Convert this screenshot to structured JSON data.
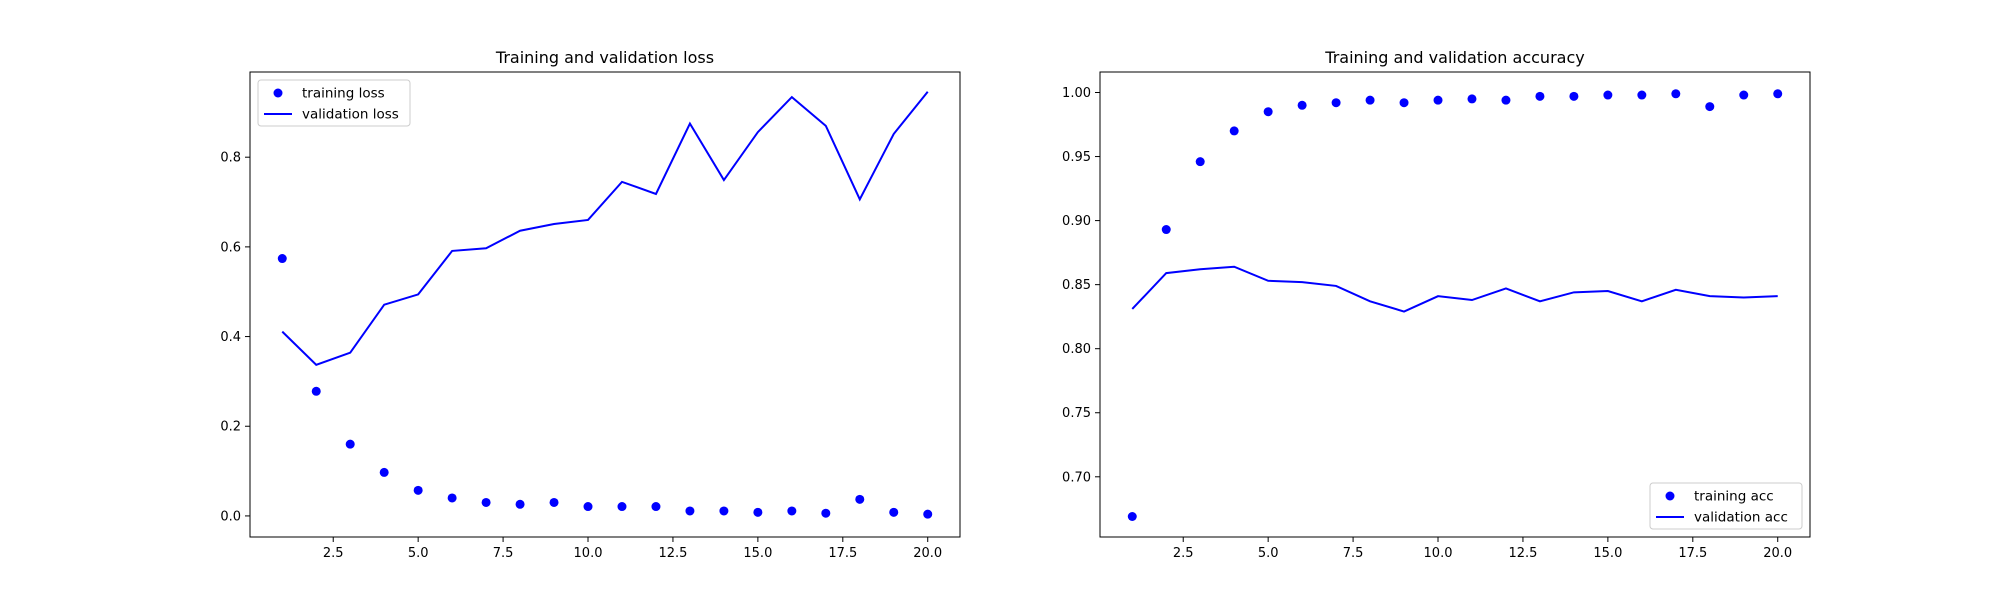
{
  "colors": {
    "series": "#0000ff",
    "axes": "#000000",
    "legend_frame": "#cccccc"
  },
  "chart_data": [
    {
      "type": "line",
      "title": "Training and validation loss",
      "xlabel": "",
      "ylabel": "",
      "xlim": [
        0.05,
        20.95
      ],
      "ylim": [
        -0.047,
        0.99
      ],
      "xticks": [
        2.5,
        5.0,
        7.5,
        10.0,
        12.5,
        15.0,
        17.5,
        20.0
      ],
      "yticks": [
        0.0,
        0.2,
        0.4,
        0.6,
        0.8
      ],
      "grid": false,
      "legend_position": "upper left",
      "x": [
        1,
        2,
        3,
        4,
        5,
        6,
        7,
        8,
        9,
        10,
        11,
        12,
        13,
        14,
        15,
        16,
        17,
        18,
        19,
        20
      ],
      "series": [
        {
          "name": "training loss",
          "style": "markers",
          "values": [
            0.574,
            0.278,
            0.16,
            0.097,
            0.057,
            0.04,
            0.03,
            0.026,
            0.03,
            0.021,
            0.021,
            0.021,
            0.011,
            0.011,
            0.008,
            0.011,
            0.006,
            0.037,
            0.008,
            0.004
          ]
        },
        {
          "name": "validation loss",
          "style": "line",
          "values": [
            0.411,
            0.337,
            0.364,
            0.471,
            0.494,
            0.591,
            0.597,
            0.636,
            0.651,
            0.66,
            0.745,
            0.718,
            0.875,
            0.749,
            0.856,
            0.934,
            0.87,
            0.706,
            0.852,
            0.946
          ]
        }
      ]
    },
    {
      "type": "line",
      "title": "Training and validation accuracy",
      "xlabel": "",
      "ylabel": "",
      "xlim": [
        0.05,
        20.95
      ],
      "ylim": [
        0.653,
        1.016
      ],
      "xticks": [
        2.5,
        5.0,
        7.5,
        10.0,
        12.5,
        15.0,
        17.5,
        20.0
      ],
      "yticks": [
        0.7,
        0.75,
        0.8,
        0.85,
        0.9,
        0.95,
        1.0
      ],
      "grid": false,
      "legend_position": "lower right",
      "x": [
        1,
        2,
        3,
        4,
        5,
        6,
        7,
        8,
        9,
        10,
        11,
        12,
        13,
        14,
        15,
        16,
        17,
        18,
        19,
        20
      ],
      "series": [
        {
          "name": "training acc",
          "style": "markers",
          "values": [
            0.669,
            0.893,
            0.946,
            0.97,
            0.985,
            0.99,
            0.992,
            0.994,
            0.992,
            0.994,
            0.995,
            0.994,
            0.997,
            0.997,
            0.998,
            0.998,
            0.999,
            0.989,
            0.998,
            0.999
          ]
        },
        {
          "name": "validation acc",
          "style": "line",
          "values": [
            0.831,
            0.859,
            0.862,
            0.864,
            0.853,
            0.852,
            0.849,
            0.837,
            0.829,
            0.841,
            0.838,
            0.847,
            0.837,
            0.844,
            0.845,
            0.837,
            0.846,
            0.841,
            0.84,
            0.841
          ]
        }
      ]
    }
  ]
}
